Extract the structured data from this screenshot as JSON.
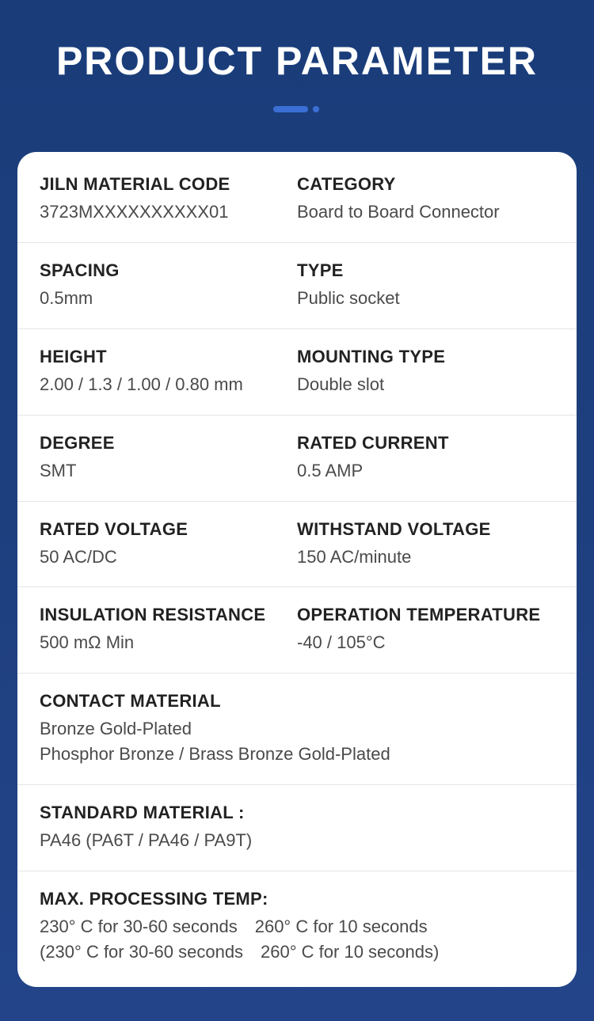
{
  "header": {
    "title": "PRODUCT PARAMETER"
  },
  "colors": {
    "page_bg_top": "#1a3d7a",
    "page_bg_bottom": "#234489",
    "card_bg": "#ffffff",
    "accent": "#3b6fd6",
    "label_text": "#222222",
    "value_text": "#4a4a4a",
    "divider": "#e5e5e5",
    "title_text": "#ffffff"
  },
  "params": {
    "material_code": {
      "label": "JILN MATERIAL CODE",
      "value": "3723MXXXXXXXXXX01"
    },
    "category": {
      "label": "CATEGORY",
      "value": "Board to Board Connector"
    },
    "spacing": {
      "label": "SPACING",
      "value": "0.5mm"
    },
    "type": {
      "label": "TYPE",
      "value": "Public socket"
    },
    "height": {
      "label": "HEIGHT",
      "value": "2.00 / 1.3 / 1.00 / 0.80 mm"
    },
    "mounting_type": {
      "label": "MOUNTING TYPE",
      "value": "Double slot"
    },
    "degree": {
      "label": "DEGREE",
      "value": "SMT"
    },
    "rated_current": {
      "label": "RATED CURRENT",
      "value": "0.5 AMP"
    },
    "rated_voltage": {
      "label": "RATED VOLTAGE",
      "value": "50 AC/DC"
    },
    "withstand_voltage": {
      "label": "WITHSTAND VOLTAGE",
      "value": "150 AC/minute"
    },
    "insulation_resistance": {
      "label": "INSULATION RESISTANCE",
      "value": "500 mΩ Min"
    },
    "operation_temperature": {
      "label": "OPERATION TEMPERATURE",
      "value": "-40 / 105°C"
    },
    "contact_material": {
      "label": "CONTACT MATERIAL",
      "value": "Bronze Gold-Plated\nPhosphor Bronze / Brass Bronze Gold-Plated"
    },
    "standard_material": {
      "label": "STANDARD MATERIAL :",
      "value": "PA46 (PA6T / PA46 / PA9T)"
    },
    "max_processing_temp": {
      "label": "MAX. PROCESSING TEMP:",
      "value": "230° C for 30-60 seconds 260° C for 10 seconds\n(230° C for 30-60 seconds 260° C for 10 seconds)"
    }
  }
}
